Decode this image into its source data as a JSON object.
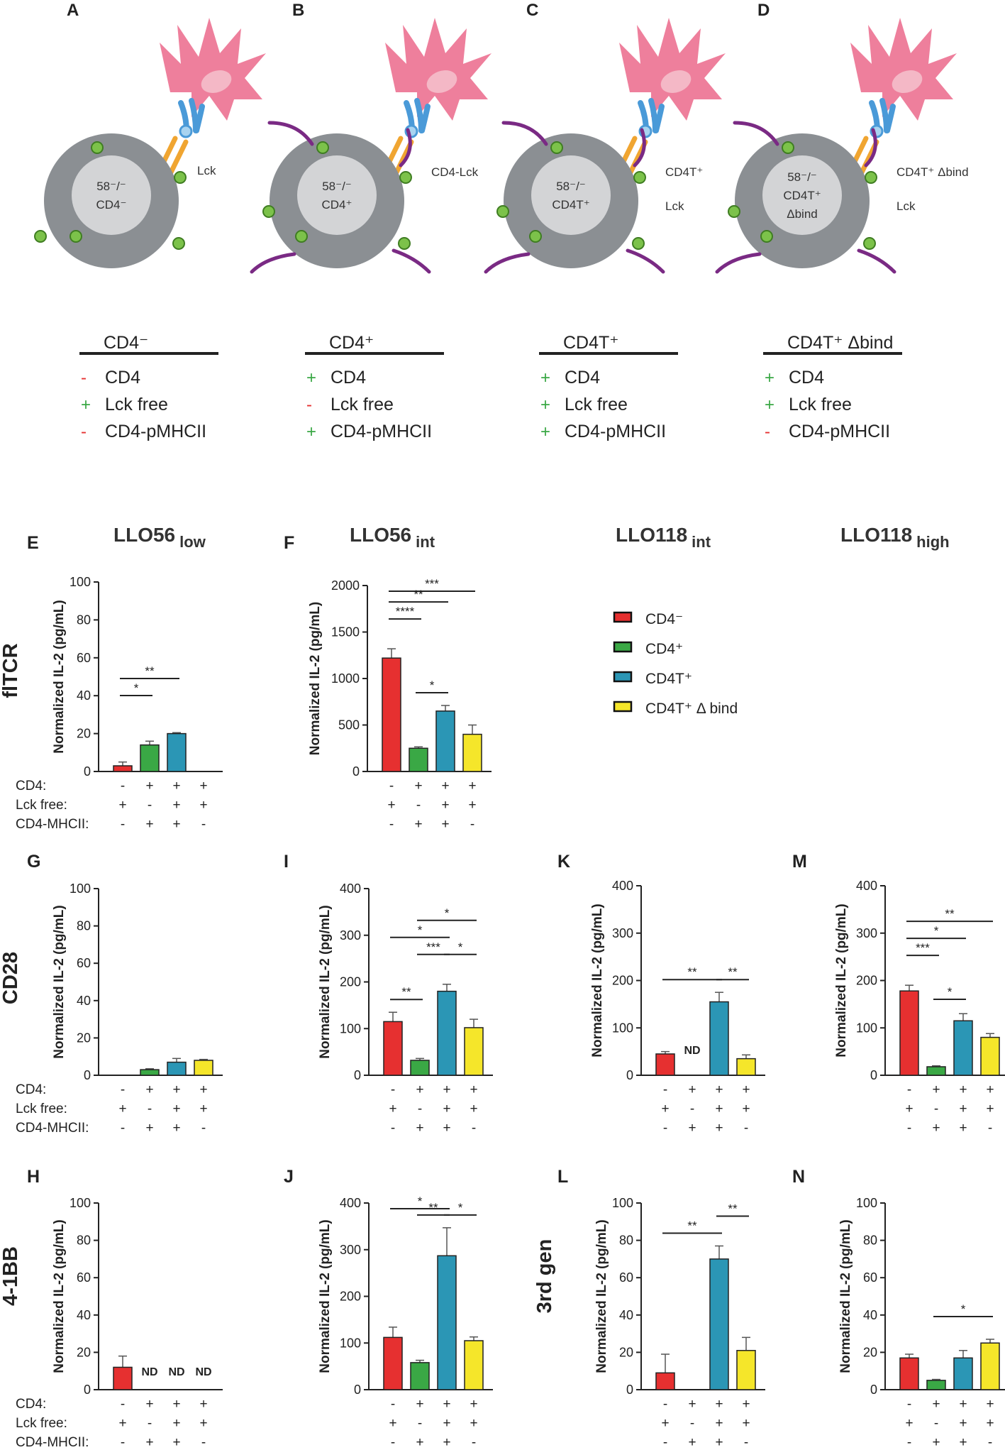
{
  "panels_top": [
    {
      "letter": "A",
      "nucleus": [
        "58⁻/⁻",
        "CD4⁻"
      ],
      "side_labels": [
        "Lck"
      ],
      "tails": false,
      "table": {
        "title": "CD4⁻",
        "rows": [
          {
            "sign": "-",
            "label": "CD4"
          },
          {
            "sign": "+",
            "label": "Lck free"
          },
          {
            "sign": "-",
            "label": "CD4-pMHCII"
          }
        ]
      }
    },
    {
      "letter": "B",
      "nucleus": [
        "58⁻/⁻",
        "CD4⁺"
      ],
      "side_labels": [
        "CD4-Lck"
      ],
      "tails": true,
      "table": {
        "title": "CD4⁺",
        "rows": [
          {
            "sign": "+",
            "label": "CD4"
          },
          {
            "sign": "-",
            "label": "Lck free"
          },
          {
            "sign": "+",
            "label": "CD4-pMHCII"
          }
        ]
      }
    },
    {
      "letter": "C",
      "nucleus": [
        "58⁻/⁻",
        "CD4T⁺"
      ],
      "side_labels": [
        "CD4T⁺",
        "Lck"
      ],
      "tails": true,
      "table": {
        "title": "CD4T⁺",
        "rows": [
          {
            "sign": "+",
            "label": "CD4"
          },
          {
            "sign": "+",
            "label": "Lck free"
          },
          {
            "sign": "+",
            "label": "CD4-pMHCII"
          }
        ]
      }
    },
    {
      "letter": "D",
      "nucleus": [
        "58⁻/⁻",
        "CD4T⁺",
        "Δbind"
      ],
      "side_labels": [
        "CD4T⁺ Δbind",
        "Lck"
      ],
      "tails": true,
      "table": {
        "title": "CD4T⁺ Δbind",
        "rows": [
          {
            "sign": "+",
            "label": "CD4"
          },
          {
            "sign": "+",
            "label": "Lck free"
          },
          {
            "sign": "-",
            "label": "CD4-pMHCII"
          }
        ]
      }
    }
  ],
  "column_titles": [
    {
      "main": "LLO56",
      "sub": "low"
    },
    {
      "main": "LLO56",
      "sub": "int"
    },
    {
      "main": "LLO118",
      "sub": "int"
    },
    {
      "main": "LLO118",
      "sub": "high"
    }
  ],
  "row_labels": [
    "flTCR",
    "CD28",
    "4-1BB",
    "3rd gen"
  ],
  "legend": [
    {
      "label": "CD4⁻",
      "color": "#e63030"
    },
    {
      "label": "CD4⁺",
      "color": "#3aa845"
    },
    {
      "label": "CD4T⁺",
      "color": "#2b96b5"
    },
    {
      "label": "CD4T⁺ Δ bind",
      "color": "#f5e62a"
    }
  ],
  "y_axis_label": "Normalized IL-2 (pg/mL)",
  "condition_labels": [
    "CD4:",
    "Lck free:",
    "CD4-MHCII:"
  ],
  "condition_signs": [
    [
      "-",
      "+",
      "+",
      "+"
    ],
    [
      "+",
      "-",
      "+",
      "+"
    ],
    [
      "-",
      "+",
      "+",
      "-"
    ]
  ],
  "colors": {
    "bar_red": "#e63030",
    "bar_green": "#3aa845",
    "bar_blue": "#2b96b5",
    "bar_yellow": "#f5e62a",
    "cell_gray": "#8b8f93",
    "nucleus": "#d3d4d6",
    "apc_pink": "#ee7f9c",
    "apc_nucleus": "#f4b8c6",
    "tcr_blue": "#4a9ad8",
    "cd4_orange": "#f0a531",
    "lck_green": "#7cc24a",
    "cd4_purple": "#7a2a84",
    "sign_plus": "#3aa845",
    "sign_minus": "#e63030"
  },
  "chart_data": [
    {
      "letter": "E",
      "type": "bar",
      "ylabel": "Normalized IL-2 (pg/mL)",
      "ylim": [
        0,
        100
      ],
      "yticks": [
        0,
        20,
        40,
        60,
        80,
        100
      ],
      "categories": [
        "CD4⁻",
        "CD4⁺",
        "CD4T⁺",
        "CD4T⁺ Δ bind"
      ],
      "values": [
        3,
        14,
        20,
        null
      ],
      "errors": [
        2,
        2,
        0.5,
        null
      ],
      "nd": [],
      "show_conditions": true,
      "sig": [
        {
          "from": 0,
          "to": 1,
          "label": "*",
          "level": 1
        },
        {
          "from": 0,
          "to": 2,
          "label": "**",
          "level": 2
        }
      ]
    },
    {
      "letter": "F",
      "type": "bar",
      "ylabel": "Normalized IL-2 (pg/mL)",
      "ylim": [
        0,
        2000
      ],
      "yticks": [
        0,
        500,
        1000,
        1500,
        2000
      ],
      "categories": [
        "CD4⁻",
        "CD4⁺",
        "CD4T⁺",
        "CD4T⁺ Δ bind"
      ],
      "values": [
        1220,
        250,
        650,
        400
      ],
      "errors": [
        100,
        15,
        60,
        100
      ],
      "nd": [],
      "show_conditions": false,
      "sig": [
        {
          "from": 1,
          "to": 2,
          "label": "*",
          "level": 1
        },
        {
          "from": 0,
          "to": 1,
          "label": "****",
          "level": 2
        },
        {
          "from": 0,
          "to": 2,
          "label": "**",
          "level": 3
        },
        {
          "from": 0,
          "to": 3,
          "label": "***",
          "level": 4
        }
      ]
    },
    {
      "letter": "G",
      "type": "bar",
      "ylabel": "Normalized IL-2 (pg/mL)",
      "ylim": [
        0,
        100
      ],
      "yticks": [
        0,
        20,
        40,
        60,
        80,
        100
      ],
      "categories": [
        "CD4⁻",
        "CD4⁺",
        "CD4T⁺",
        "CD4T⁺ Δ bind"
      ],
      "values": [
        null,
        3,
        7,
        8
      ],
      "errors": [
        null,
        0.5,
        2,
        0.5
      ],
      "nd": [],
      "show_conditions": true,
      "sig": []
    },
    {
      "letter": "I",
      "type": "bar",
      "ylabel": "Normalized IL-2 (pg/mL)",
      "ylim": [
        0,
        400
      ],
      "yticks": [
        0,
        100,
        200,
        300,
        400
      ],
      "categories": [
        "CD4⁻",
        "CD4⁺",
        "CD4T⁺",
        "CD4T⁺ Δ bind"
      ],
      "values": [
        115,
        32,
        180,
        102
      ],
      "errors": [
        20,
        4,
        15,
        18
      ],
      "nd": [],
      "show_conditions": false,
      "sig": [
        {
          "from": 0,
          "to": 1,
          "label": "**",
          "level": 1
        },
        {
          "from": 1,
          "to": 2,
          "label": "***",
          "level": 2
        },
        {
          "from": 2,
          "to": 3,
          "label": "*",
          "level": 2
        },
        {
          "from": 0,
          "to": 2,
          "label": "*",
          "level": 3
        },
        {
          "from": 1,
          "to": 3,
          "label": "*",
          "level": 4
        }
      ]
    },
    {
      "letter": "K",
      "type": "bar",
      "ylabel": "Normalized IL-2 (pg/mL)",
      "ylim": [
        0,
        400
      ],
      "yticks": [
        0,
        100,
        200,
        300,
        400
      ],
      "categories": [
        "CD4⁻",
        "CD4⁺",
        "CD4T⁺",
        "CD4T⁺ Δ bind"
      ],
      "values": [
        45,
        null,
        155,
        35
      ],
      "errors": [
        5,
        null,
        20,
        8
      ],
      "nd": [
        1
      ],
      "show_conditions": false,
      "sig": [
        {
          "from": 0,
          "to": 2,
          "label": "**",
          "level": 1
        },
        {
          "from": 2,
          "to": 3,
          "label": "**",
          "level": 1
        }
      ]
    },
    {
      "letter": "M",
      "type": "bar",
      "ylabel": "Normalized IL-2 (pg/mL)",
      "ylim": [
        0,
        400
      ],
      "yticks": [
        0,
        100,
        200,
        300,
        400
      ],
      "categories": [
        "CD4⁻",
        "CD4⁺",
        "CD4T⁺",
        "CD4T⁺ Δ bind"
      ],
      "values": [
        178,
        18,
        115,
        80
      ],
      "errors": [
        12,
        2,
        15,
        8
      ],
      "nd": [],
      "show_conditions": false,
      "sig": [
        {
          "from": 1,
          "to": 2,
          "label": "*",
          "level": 1
        },
        {
          "from": 0,
          "to": 1,
          "label": "***",
          "level": 2
        },
        {
          "from": 0,
          "to": 2,
          "label": "*",
          "level": 3
        },
        {
          "from": 0,
          "to": 3,
          "label": "**",
          "level": 4
        }
      ]
    },
    {
      "letter": "H",
      "type": "bar",
      "ylabel": "Normalized IL-2 (pg/mL)",
      "ylim": [
        0,
        100
      ],
      "yticks": [
        0,
        20,
        40,
        60,
        80,
        100
      ],
      "categories": [
        "CD4⁻",
        "CD4⁺",
        "CD4T⁺",
        "CD4T⁺ Δ bind"
      ],
      "values": [
        12,
        null,
        null,
        null
      ],
      "errors": [
        6,
        null,
        null,
        null
      ],
      "nd": [
        1,
        2,
        3
      ],
      "show_conditions": true,
      "sig": []
    },
    {
      "letter": "J",
      "type": "bar",
      "ylabel": "Normalized IL-2 (pg/mL)",
      "ylim": [
        0,
        400
      ],
      "yticks": [
        0,
        100,
        200,
        300,
        400
      ],
      "categories": [
        "CD4⁻",
        "CD4⁺",
        "CD4T⁺",
        "CD4T⁺ Δ bind"
      ],
      "values": [
        112,
        58,
        287,
        105
      ],
      "errors": [
        22,
        5,
        60,
        8
      ],
      "nd": [],
      "show_conditions": false,
      "sig": [
        {
          "from": 1,
          "to": 2,
          "label": "**",
          "level": 1
        },
        {
          "from": 2,
          "to": 3,
          "label": "*",
          "level": 1
        },
        {
          "from": 0,
          "to": 2,
          "label": "*",
          "level": 2
        }
      ]
    },
    {
      "letter": "L",
      "type": "bar",
      "ylabel": "Normalized IL-2 (pg/mL)",
      "ylim": [
        0,
        100
      ],
      "yticks": [
        0,
        20,
        40,
        60,
        80,
        100
      ],
      "categories": [
        "CD4⁻",
        "CD4⁺",
        "CD4T⁺",
        "CD4T⁺ Δ bind"
      ],
      "values": [
        9,
        null,
        70,
        21
      ],
      "errors": [
        10,
        null,
        7,
        7
      ],
      "nd": [],
      "show_conditions": false,
      "sig": [
        {
          "from": 0,
          "to": 2,
          "label": "**",
          "level": 1
        },
        {
          "from": 2,
          "to": 3,
          "label": "**",
          "level": 2
        }
      ]
    },
    {
      "letter": "N",
      "type": "bar",
      "ylabel": "Normalized IL-2 (pg/mL)",
      "ylim": [
        0,
        100
      ],
      "yticks": [
        0,
        20,
        40,
        60,
        80,
        100
      ],
      "categories": [
        "CD4⁻",
        "CD4⁺",
        "CD4T⁺",
        "CD4T⁺ Δ bind"
      ],
      "values": [
        17,
        5,
        17,
        25
      ],
      "errors": [
        2,
        0.5,
        4,
        2
      ],
      "nd": [],
      "show_conditions": false,
      "sig": [
        {
          "from": 1,
          "to": 3,
          "label": "*",
          "level": 1
        }
      ]
    }
  ]
}
